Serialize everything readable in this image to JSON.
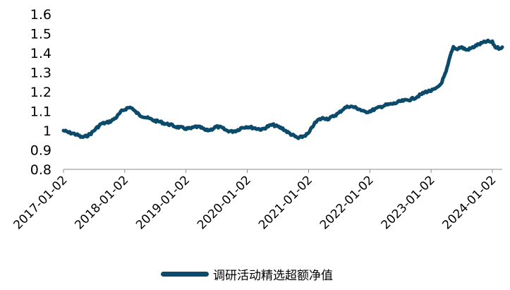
{
  "chart_data": {
    "type": "line",
    "title": "",
    "xlabel": "",
    "ylabel": "",
    "ylim": [
      0.8,
      1.6
    ],
    "yticks": [
      "0.8",
      "0.9",
      "1",
      "1.1",
      "1.2",
      "1.3",
      "1.4",
      "1.5",
      "1.6"
    ],
    "xticks": [
      "2017-01-02",
      "2018-01-02",
      "2019-01-02",
      "2020-01-02",
      "2021-01-02",
      "2022-01-02",
      "2023-01-02",
      "2024-01-02"
    ],
    "xlim": [
      "2017-01-02",
      "2024-03-01"
    ],
    "grid": false,
    "legend_position": "bottom",
    "series": [
      {
        "name": "调研活动精选超额净值",
        "color": "#0b4a6b",
        "points": [
          [
            "2017-01-02",
            1.0
          ],
          [
            "2017-02-01",
            0.99
          ],
          [
            "2017-03-01",
            0.985
          ],
          [
            "2017-04-01",
            0.975
          ],
          [
            "2017-04-20",
            0.965
          ],
          [
            "2017-05-15",
            0.97
          ],
          [
            "2017-06-15",
            0.985
          ],
          [
            "2017-07-15",
            1.01
          ],
          [
            "2017-08-15",
            1.035
          ],
          [
            "2017-09-15",
            1.04
          ],
          [
            "2017-10-15",
            1.05
          ],
          [
            "2017-11-15",
            1.07
          ],
          [
            "2017-12-15",
            1.1
          ],
          [
            "2018-01-15",
            1.115
          ],
          [
            "2018-02-10",
            1.12
          ],
          [
            "2018-03-01",
            1.1
          ],
          [
            "2018-04-01",
            1.08
          ],
          [
            "2018-05-01",
            1.07
          ],
          [
            "2018-06-01",
            1.06
          ],
          [
            "2018-07-01",
            1.05
          ],
          [
            "2018-08-01",
            1.045
          ],
          [
            "2018-09-01",
            1.035
          ],
          [
            "2018-10-01",
            1.03
          ],
          [
            "2018-11-01",
            1.02
          ],
          [
            "2018-12-01",
            1.015
          ],
          [
            "2019-01-02",
            1.01
          ],
          [
            "2019-02-01",
            1.01
          ],
          [
            "2019-03-01",
            1.02
          ],
          [
            "2019-04-01",
            1.015
          ],
          [
            "2019-05-01",
            1.0
          ],
          [
            "2019-06-01",
            1.005
          ],
          [
            "2019-07-01",
            1.02
          ],
          [
            "2019-08-01",
            1.015
          ],
          [
            "2019-09-01",
            1.0
          ],
          [
            "2019-10-01",
            0.995
          ],
          [
            "2019-11-01",
            1.0
          ],
          [
            "2019-12-01",
            1.015
          ],
          [
            "2020-01-02",
            1.02
          ],
          [
            "2020-02-01",
            1.015
          ],
          [
            "2020-03-01",
            1.01
          ],
          [
            "2020-04-01",
            1.005
          ],
          [
            "2020-05-01",
            1.02
          ],
          [
            "2020-06-01",
            1.03
          ],
          [
            "2020-07-01",
            1.02
          ],
          [
            "2020-08-01",
            1.01
          ],
          [
            "2020-09-01",
            0.99
          ],
          [
            "2020-10-01",
            0.975
          ],
          [
            "2020-11-01",
            0.96
          ],
          [
            "2020-12-01",
            0.97
          ],
          [
            "2021-01-02",
            0.985
          ],
          [
            "2021-02-01",
            1.03
          ],
          [
            "2021-03-01",
            1.055
          ],
          [
            "2021-04-01",
            1.065
          ],
          [
            "2021-05-01",
            1.06
          ],
          [
            "2021-06-01",
            1.075
          ],
          [
            "2021-07-01",
            1.09
          ],
          [
            "2021-08-01",
            1.115
          ],
          [
            "2021-09-01",
            1.125
          ],
          [
            "2021-10-01",
            1.12
          ],
          [
            "2021-11-01",
            1.11
          ],
          [
            "2021-12-01",
            1.095
          ],
          [
            "2022-01-02",
            1.1
          ],
          [
            "2022-02-01",
            1.11
          ],
          [
            "2022-03-01",
            1.12
          ],
          [
            "2022-04-01",
            1.13
          ],
          [
            "2022-05-01",
            1.135
          ],
          [
            "2022-06-01",
            1.14
          ],
          [
            "2022-07-01",
            1.15
          ],
          [
            "2022-08-01",
            1.155
          ],
          [
            "2022-09-01",
            1.16
          ],
          [
            "2022-10-01",
            1.17
          ],
          [
            "2022-11-01",
            1.185
          ],
          [
            "2022-12-01",
            1.2
          ],
          [
            "2023-01-02",
            1.205
          ],
          [
            "2023-02-01",
            1.215
          ],
          [
            "2023-03-01",
            1.24
          ],
          [
            "2023-04-01",
            1.3
          ],
          [
            "2023-04-25",
            1.38
          ],
          [
            "2023-05-15",
            1.43
          ],
          [
            "2023-06-01",
            1.42
          ],
          [
            "2023-07-01",
            1.43
          ],
          [
            "2023-08-01",
            1.415
          ],
          [
            "2023-09-01",
            1.425
          ],
          [
            "2023-10-01",
            1.44
          ],
          [
            "2023-11-01",
            1.45
          ],
          [
            "2023-12-01",
            1.46
          ],
          [
            "2024-01-02",
            1.455
          ],
          [
            "2024-01-20",
            1.43
          ],
          [
            "2024-02-10",
            1.425
          ],
          [
            "2024-03-01",
            1.43
          ]
        ]
      }
    ]
  }
}
